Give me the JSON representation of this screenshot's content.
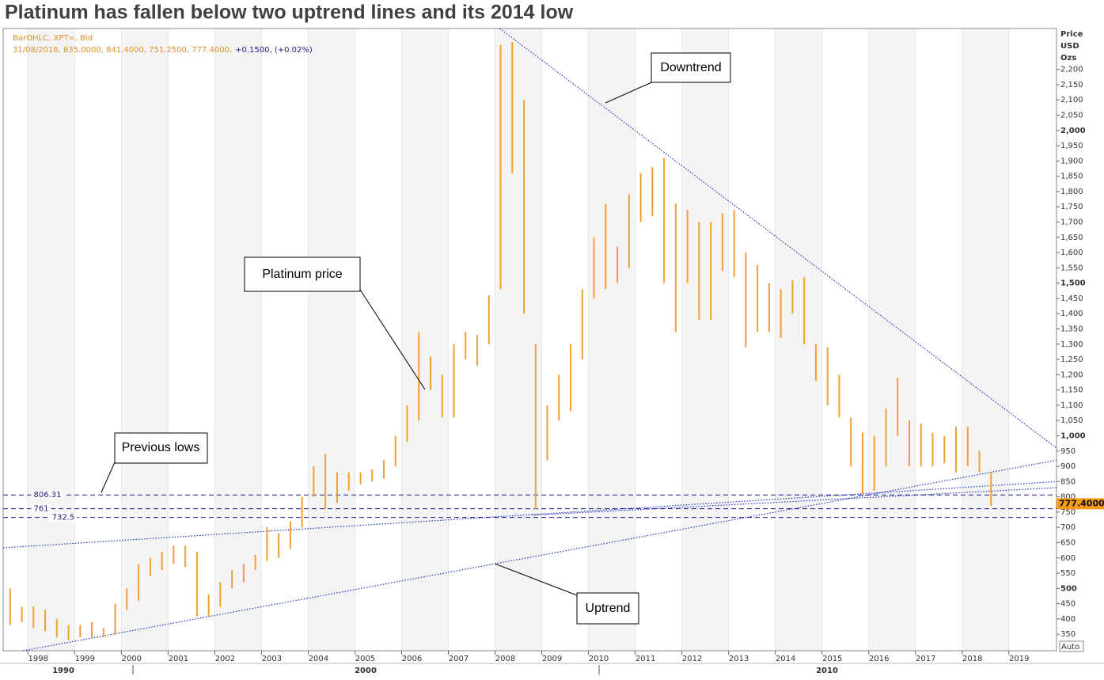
{
  "chart_data": {
    "type": "ohlc",
    "title": "Platinum has fallen below two uptrend lines and its 2014 low",
    "info_lines": [
      "BarOHLC, XPT=, Bid",
      "31/08/2018, 835.0000, 841.4000, 751.2500, 777.4000,"
    ],
    "change": "+0.1500, (+0.02%)",
    "y_axis_title": [
      "Price",
      "USD",
      "Ozs"
    ],
    "auto_button": "Auto",
    "color": "#f0a030",
    "x": [
      1997.5,
      1997.75,
      1998,
      1998.25,
      1998.5,
      1998.75,
      1999,
      1999.25,
      1999.5,
      1999.75,
      2000,
      2000.25,
      2000.5,
      2000.75,
      2001,
      2001.25,
      2001.5,
      2001.75,
      2002,
      2002.25,
      2002.5,
      2002.75,
      2003,
      2003.25,
      2003.5,
      2003.75,
      2004,
      2004.25,
      2004.5,
      2004.75,
      2005,
      2005.25,
      2005.5,
      2005.75,
      2006,
      2006.25,
      2006.5,
      2006.75,
      2007,
      2007.25,
      2007.5,
      2007.75,
      2008,
      2008.25,
      2008.5,
      2008.75,
      2009,
      2009.25,
      2009.5,
      2009.75,
      2010,
      2010.25,
      2010.5,
      2010.75,
      2011,
      2011.25,
      2011.5,
      2011.75,
      2012,
      2012.25,
      2012.5,
      2012.75,
      2013,
      2013.25,
      2013.5,
      2013.75,
      2014,
      2014.25,
      2014.5,
      2014.75,
      2015,
      2015.25,
      2015.5,
      2015.75,
      2016,
      2016.25,
      2016.5,
      2016.75,
      2017,
      2017.25,
      2017.5,
      2017.75,
      2018,
      2018.25,
      2018.5
    ],
    "high": [
      500,
      440,
      440,
      430,
      400,
      380,
      380,
      390,
      370,
      450,
      500,
      580,
      600,
      620,
      640,
      640,
      620,
      480,
      520,
      560,
      580,
      610,
      700,
      680,
      720,
      800,
      900,
      940,
      880,
      880,
      880,
      890,
      920,
      1000,
      1100,
      1340,
      1260,
      1200,
      1300,
      1340,
      1330,
      1460,
      2280,
      2290,
      2100,
      1300,
      1100,
      1200,
      1300,
      1480,
      1650,
      1760,
      1620,
      1790,
      1860,
      1880,
      1910,
      1760,
      1740,
      1700,
      1700,
      1730,
      1740,
      1600,
      1560,
      1500,
      1480,
      1510,
      1520,
      1300,
      1290,
      1200,
      1060,
      1010,
      1000,
      1090,
      1190,
      1050,
      1040,
      1010,
      1000,
      1030,
      1030,
      950,
      880
    ],
    "low": [
      380,
      390,
      370,
      360,
      340,
      330,
      340,
      340,
      340,
      350,
      430,
      460,
      540,
      560,
      580,
      570,
      410,
      410,
      440,
      500,
      520,
      560,
      590,
      600,
      630,
      700,
      800,
      760,
      780,
      820,
      840,
      850,
      860,
      900,
      980,
      1050,
      1150,
      1060,
      1060,
      1250,
      1230,
      1300,
      1480,
      1860,
      1400,
      760,
      920,
      1050,
      1080,
      1250,
      1450,
      1480,
      1500,
      1550,
      1700,
      1720,
      1500,
      1340,
      1500,
      1380,
      1380,
      1540,
      1520,
      1290,
      1340,
      1340,
      1320,
      1400,
      1300,
      1180,
      1100,
      1060,
      900,
      810,
      820,
      900,
      1000,
      900,
      900,
      900,
      910,
      880,
      900,
      880,
      770
    ],
    "xlim": [
      1997.47,
      2020.02
    ],
    "xticks": [
      1998,
      1999,
      2000,
      2001,
      2002,
      2003,
      2004,
      2005,
      2006,
      2007,
      2008,
      2009,
      2010,
      2011,
      2012,
      2013,
      2014,
      2015,
      2016,
      2017,
      2018,
      2019
    ],
    "decade_labels": [
      "1990",
      "2000",
      "2010"
    ],
    "ylim": [
      296,
      2334
    ],
    "yticks": [
      350,
      400,
      450,
      500,
      550,
      600,
      650,
      700,
      750,
      800,
      850,
      900,
      950,
      {
        "value": 1000,
        "label": "1,000"
      },
      {
        "value": 1050,
        "label": "1,050"
      },
      {
        "value": 1100,
        "label": "1,100"
      },
      {
        "value": 1150,
        "label": "1,150"
      },
      {
        "value": 1200,
        "label": "1,200"
      },
      {
        "value": 1250,
        "label": "1,250"
      },
      {
        "value": 1300,
        "label": "1,300"
      },
      {
        "value": 1350,
        "label": "1,350"
      },
      {
        "value": 1400,
        "label": "1,400"
      },
      {
        "value": 1450,
        "label": "1,450"
      },
      {
        "value": 1500,
        "label": "1,500"
      },
      {
        "value": 1550,
        "label": "1,550"
      },
      {
        "value": 1600,
        "label": "1,600"
      },
      {
        "value": 1650,
        "label": "1,650"
      },
      {
        "value": 1700,
        "label": "1,700"
      },
      {
        "value": 1750,
        "label": "1,750"
      },
      {
        "value": 1800,
        "label": "1,800"
      },
      {
        "value": 1850,
        "label": "1,850"
      },
      {
        "value": 1900,
        "label": "1,900"
      },
      {
        "value": 1950,
        "label": "1,950"
      },
      {
        "value": 2000,
        "label": "2,000"
      },
      {
        "value": 2050,
        "label": "2,050"
      },
      {
        "value": 2100,
        "label": "2,100"
      },
      {
        "value": 2150,
        "label": "2,150"
      },
      {
        "value": 2200,
        "label": "2,200"
      }
    ],
    "levels": [
      806.31,
      761,
      732.5
    ],
    "last_price": {
      "value": 777.4,
      "label": "777.4000"
    },
    "trendlines": [
      {
        "x": [
          2008.1,
          2020.02
        ],
        "y": [
          2334,
          960
        ]
      },
      {
        "x": [
          1997.9,
          2020.02
        ],
        "y": [
          296,
          920
        ]
      },
      {
        "x": [
          1997.47,
          2020.02
        ],
        "y": [
          633,
          850
        ]
      },
      {
        "x": [
          2008.8,
          2020.02
        ],
        "y": [
          740,
          830
        ]
      }
    ],
    "annotations": [
      "Downtrend",
      "Platinum price",
      "Previous lows",
      "Uptrend"
    ]
  }
}
